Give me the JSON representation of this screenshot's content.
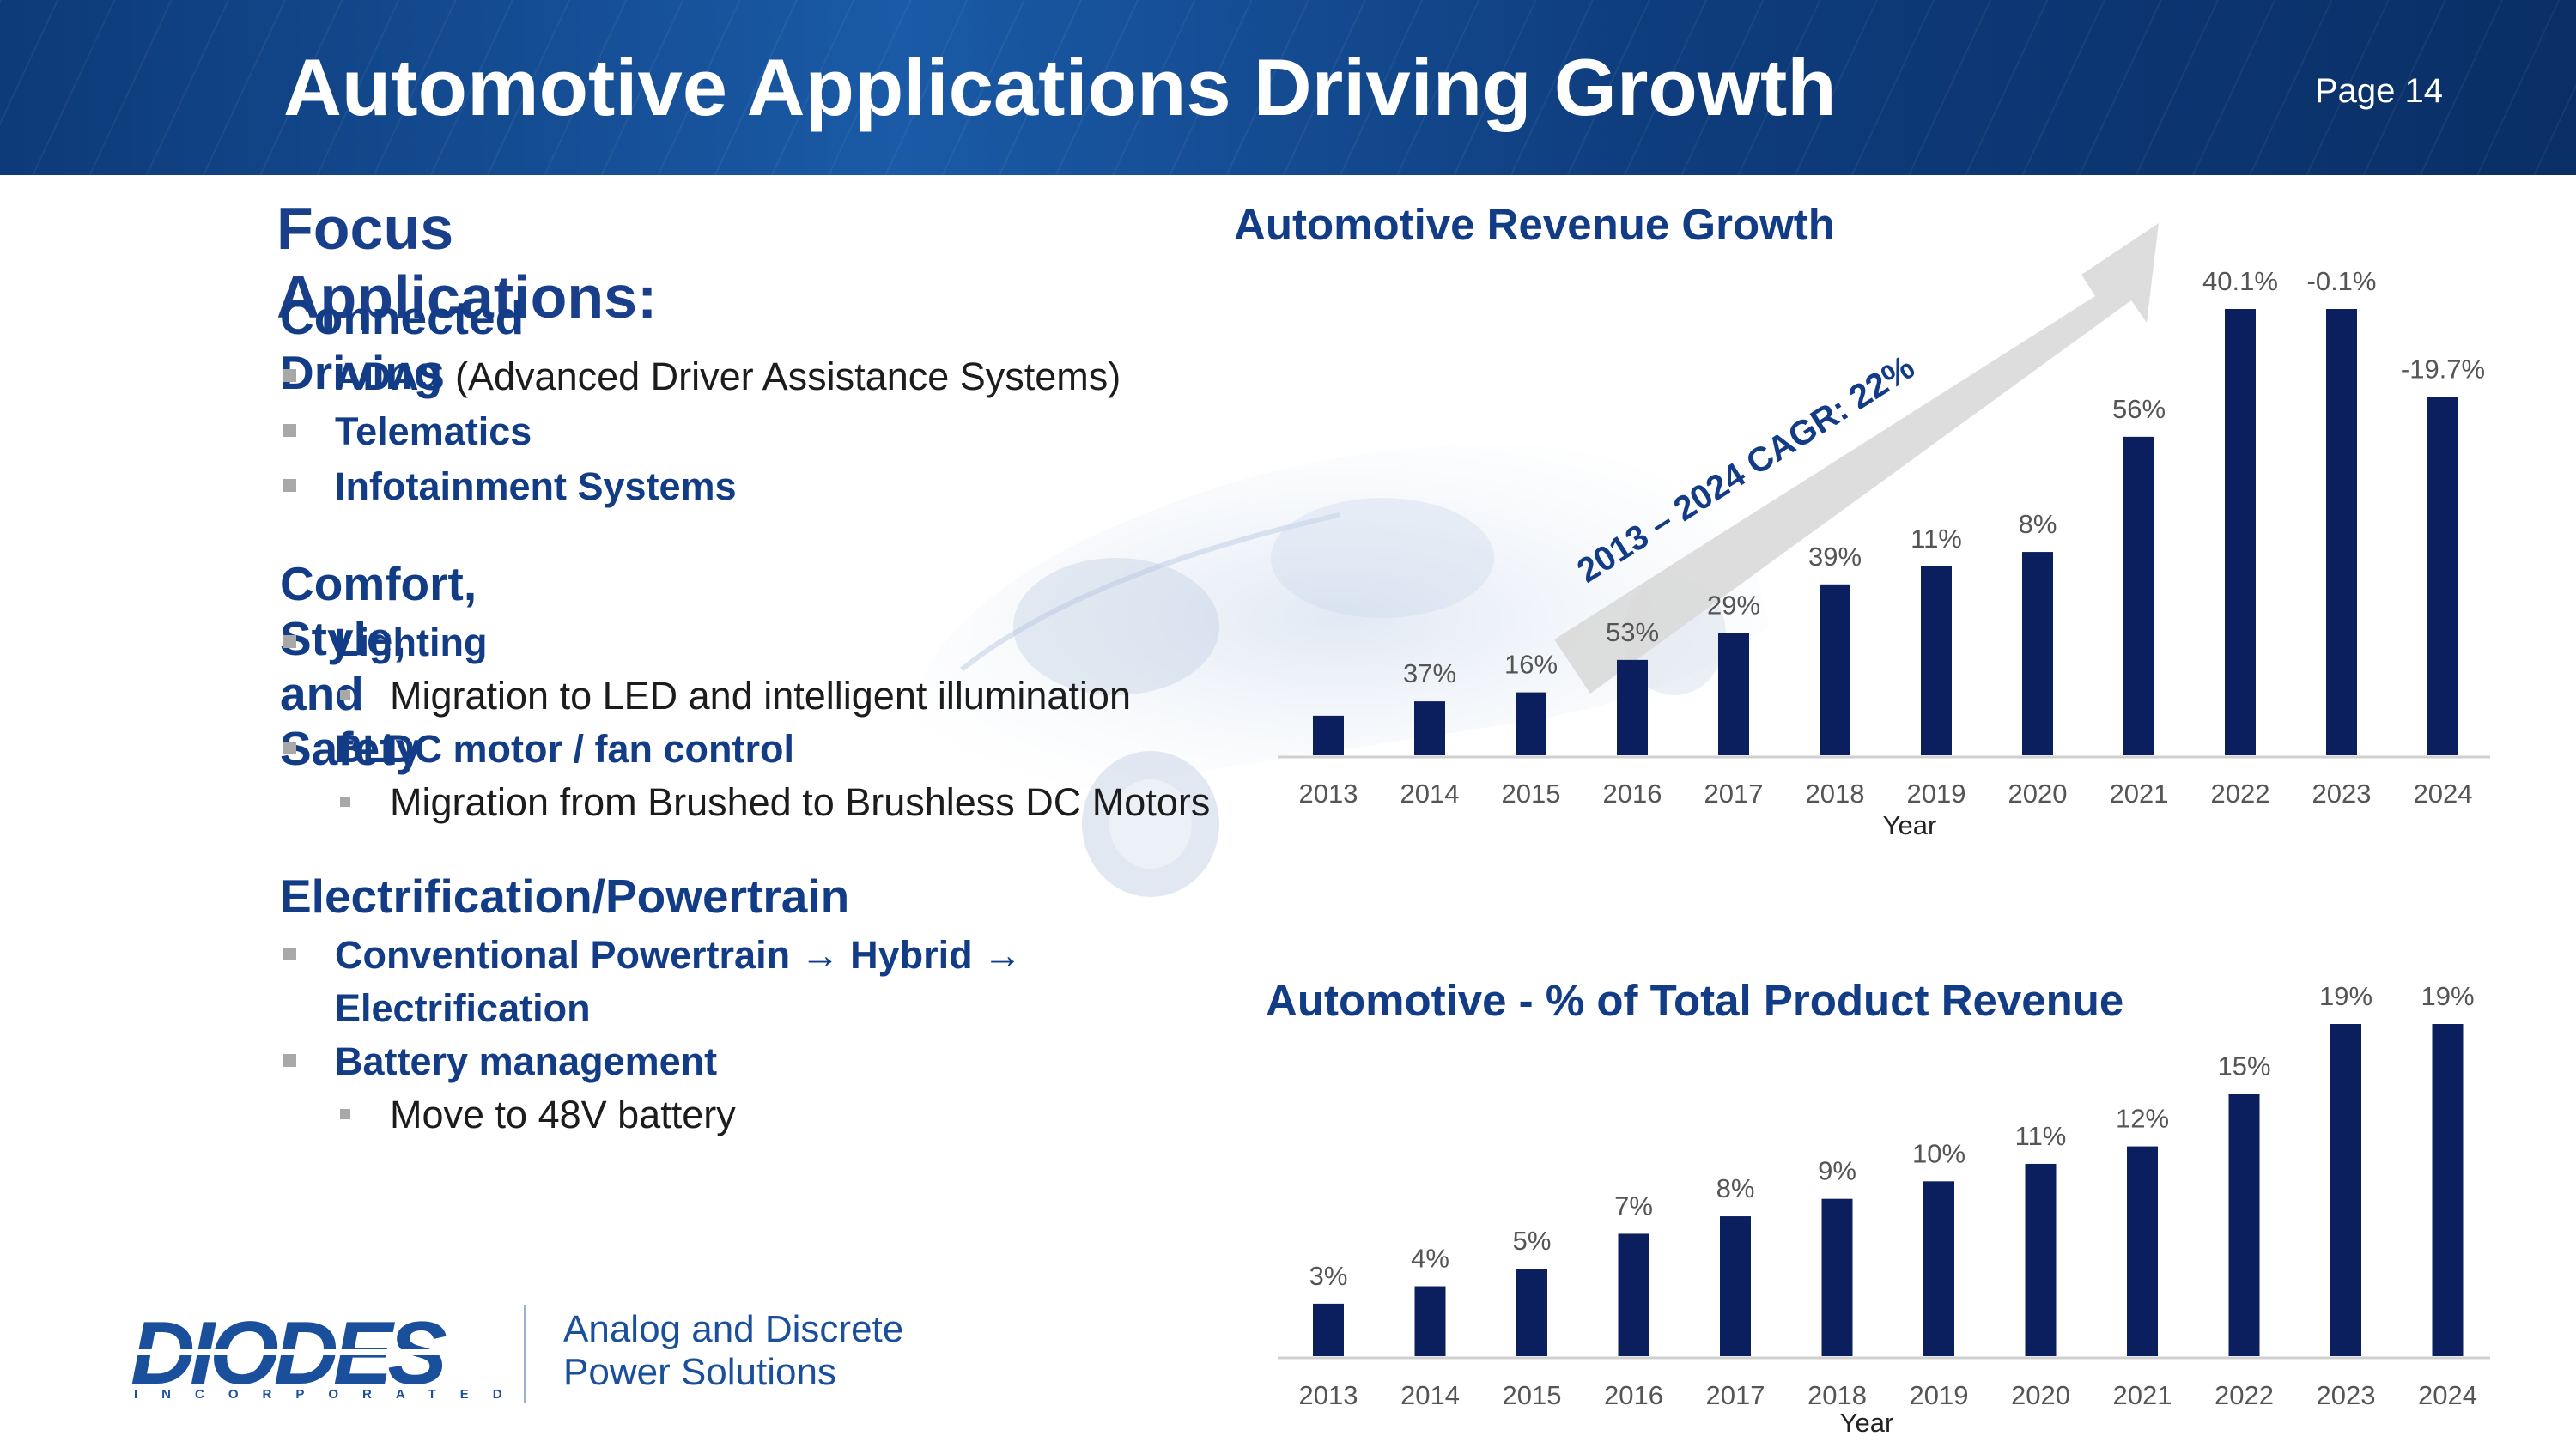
{
  "header": {
    "title": "Automotive Applications Driving Growth",
    "page": "Page 14"
  },
  "left": {
    "focus_title": "Focus Applications:",
    "sections": [
      {
        "title": "Connected Driving",
        "items": [
          {
            "bold": "ADAS",
            "rest": " (Advanced Driver Assistance Systems)"
          },
          {
            "bold": "Telematics",
            "rest": ""
          },
          {
            "bold": "Infotainment Systems",
            "rest": ""
          }
        ]
      },
      {
        "title": "Comfort, Style, and Safety",
        "items": [
          {
            "bold": "Lighting",
            "rest": "",
            "sub": "Migration to LED and intelligent illumination"
          },
          {
            "bold": "BLDC motor / fan control",
            "rest": "",
            "sub": "Migration from Brushed to Brushless DC Motors"
          }
        ]
      },
      {
        "title": "Electrification/Powertrain",
        "items": [
          {
            "bold_line1": "Conventional Powertrain → Hybrid →",
            "bold_line2": "Electrification"
          },
          {
            "bold": "Battery management",
            "rest": "",
            "sub": "Move to 48V battery"
          }
        ]
      }
    ]
  },
  "chart_data": [
    {
      "type": "bar",
      "title": "Automotive Revenue Growth",
      "xlabel": "Year",
      "ylabel": "",
      "categories": [
        "2013",
        "2014",
        "2015",
        "2016",
        "2017",
        "2018",
        "2019",
        "2020",
        "2021",
        "2022",
        "2023",
        "2024"
      ],
      "values": [
        22,
        30,
        35,
        53,
        68,
        95,
        105,
        113,
        177,
        248,
        248,
        199
      ],
      "data_labels": [
        "",
        "37%",
        "16%",
        "53%",
        "29%",
        "39%",
        "11%",
        "8%",
        "56%",
        "40.1%",
        "-0.1%",
        "-19.7%"
      ],
      "annotation": "2013 – 2024 CAGR: 22%",
      "grid": false
    },
    {
      "type": "bar",
      "title": "Automotive - % of Total Product Revenue",
      "xlabel": "Year",
      "ylabel": "",
      "categories": [
        "2013",
        "2014",
        "2015",
        "2016",
        "2017",
        "2018",
        "2019",
        "2020",
        "2021",
        "2022",
        "2023",
        "2024"
      ],
      "values": [
        3,
        4,
        5,
        7,
        8,
        9,
        10,
        11,
        12,
        15,
        19,
        19
      ],
      "data_labels": [
        "3%",
        "4%",
        "5%",
        "7%",
        "8%",
        "9%",
        "10%",
        "11%",
        "12%",
        "15%",
        "19%",
        "19%"
      ],
      "ylim": [
        0,
        19
      ],
      "grid": false
    }
  ],
  "colors": {
    "bar": "#0b1f5e",
    "accent": "#123c86",
    "arrow": "#d9d9d9"
  },
  "logo": {
    "name": "DIODES",
    "sub": "INCORPORATED",
    "tagline_1": "Analog and Discrete",
    "tagline_2": "Power Solutions"
  }
}
